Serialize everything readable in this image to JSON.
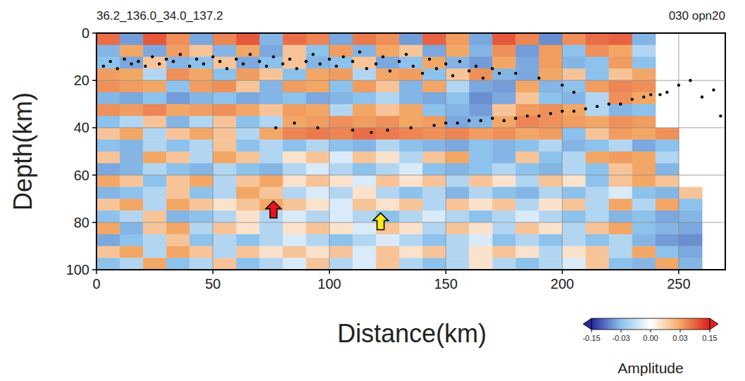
{
  "chart_data": {
    "type": "heatmap",
    "title": "36.2_136.0_34.0_137.2",
    "subtitle": "030 opn20",
    "x_label": "Distance(km)",
    "y_label": "Depth(km)",
    "xlim": [
      0,
      270
    ],
    "ylim": [
      0,
      100
    ],
    "xticks": [
      0,
      50,
      100,
      150,
      200,
      250
    ],
    "yticks": [
      0,
      20,
      40,
      60,
      80,
      100
    ],
    "grid": true,
    "cells": {
      "x_bins": [
        0,
        10,
        20,
        30,
        40,
        50,
        60,
        70,
        80,
        90,
        100,
        110,
        120,
        130,
        140,
        150,
        160,
        170,
        180,
        190,
        200,
        210,
        220,
        230,
        240,
        250,
        260,
        270
      ],
      "y_bins": [
        0,
        5,
        10,
        15,
        20,
        25,
        30,
        35,
        40,
        45,
        50,
        55,
        60,
        65,
        70,
        75,
        80,
        85,
        90,
        95,
        100
      ],
      "values": [
        [
          0.08,
          -0.06,
          0.1,
          0.05,
          -0.05,
          0.06,
          0.1,
          -0.04,
          0.08,
          0.06,
          -0.05,
          0.07,
          0.05,
          -0.06,
          0.09,
          0.04,
          -0.05,
          0.1,
          0.06,
          -0.07,
          0.05,
          0.08,
          0.09,
          -0.04,
          null,
          null,
          null
        ],
        [
          -0.04,
          0.03,
          -0.05,
          0.04,
          0.02,
          -0.04,
          0.03,
          -0.05,
          0.02,
          -0.03,
          0.04,
          -0.04,
          0.03,
          0.02,
          -0.05,
          0.03,
          -0.04,
          0.05,
          -0.06,
          0.04,
          -0.03,
          0.05,
          0.03,
          -0.02,
          null,
          null,
          null
        ],
        [
          -0.03,
          -0.05,
          0.02,
          -0.04,
          -0.03,
          0.02,
          -0.05,
          -0.03,
          0.02,
          -0.04,
          -0.03,
          0.02,
          -0.05,
          -0.03,
          0.03,
          -0.04,
          -0.06,
          0.03,
          -0.05,
          0.04,
          -0.04,
          -0.03,
          0.04,
          -0.03,
          null,
          null,
          null
        ],
        [
          0.04,
          0.03,
          -0.02,
          0.05,
          0.03,
          -0.03,
          0.04,
          0.02,
          -0.03,
          0.03,
          0.04,
          -0.02,
          0.03,
          0.04,
          -0.03,
          0.02,
          0.05,
          -0.04,
          -0.05,
          0.03,
          0.02,
          -0.03,
          0.02,
          0.03,
          null,
          null,
          null
        ],
        [
          0.05,
          0.04,
          0.03,
          -0.03,
          0.04,
          0.05,
          0.02,
          -0.04,
          0.04,
          0.03,
          -0.03,
          0.04,
          0.02,
          -0.04,
          0.03,
          -0.02,
          -0.05,
          -0.06,
          0.03,
          -0.04,
          -0.03,
          0.04,
          0.06,
          0.05,
          null,
          null,
          null
        ],
        [
          -0.04,
          -0.05,
          -0.03,
          -0.06,
          -0.04,
          -0.03,
          -0.05,
          -0.04,
          -0.03,
          -0.05,
          -0.04,
          -0.03,
          -0.02,
          -0.04,
          -0.05,
          -0.03,
          -0.07,
          -0.05,
          0.02,
          -0.03,
          -0.04,
          -0.02,
          0.05,
          0.03,
          null,
          null,
          null
        ],
        [
          0.05,
          0.04,
          0.06,
          0.03,
          0.04,
          0.05,
          0.03,
          0.02,
          0.04,
          0.03,
          -0.02,
          0.03,
          0.02,
          0.03,
          -0.03,
          -0.04,
          -0.06,
          0.02,
          0.04,
          0.05,
          0.03,
          -0.02,
          -0.04,
          -0.03,
          null,
          null,
          null
        ],
        [
          -0.03,
          -0.02,
          0.02,
          -0.04,
          -0.02,
          0.02,
          -0.03,
          -0.02,
          0.03,
          0.04,
          0.05,
          0.04,
          0.05,
          0.03,
          0.04,
          -0.05,
          -0.04,
          0.03,
          0.06,
          0.05,
          0.04,
          0.03,
          0.05,
          0.04,
          null,
          null,
          null
        ],
        [
          0.02,
          0.03,
          -0.02,
          0.02,
          0.03,
          0.02,
          -0.02,
          0.03,
          0.06,
          0.07,
          0.06,
          0.08,
          0.07,
          0.06,
          0.05,
          0.06,
          0.04,
          0.05,
          0.03,
          0.04,
          -0.03,
          0.02,
          0.04,
          0.03,
          0.05,
          null,
          null
        ],
        [
          -0.03,
          -0.04,
          -0.02,
          -0.03,
          -0.02,
          0.02,
          -0.03,
          -0.02,
          -0.03,
          -0.02,
          -0.03,
          -0.04,
          -0.02,
          -0.03,
          -0.04,
          -0.05,
          -0.03,
          -0.04,
          -0.03,
          -0.02,
          -0.04,
          -0.03,
          -0.02,
          -0.05,
          -0.03,
          null,
          null
        ],
        [
          0.02,
          -0.04,
          0.03,
          0.02,
          -0.02,
          0.03,
          0.02,
          -0.02,
          0.01,
          0.02,
          -0.01,
          0.02,
          0.01,
          -0.02,
          0.02,
          0.03,
          -0.03,
          -0.04,
          0.02,
          -0.03,
          -0.02,
          0.03,
          0.04,
          0.03,
          -0.02,
          null,
          null
        ],
        [
          -0.05,
          -0.04,
          -0.02,
          -0.03,
          -0.04,
          -0.02,
          -0.03,
          -0.04,
          -0.02,
          -0.01,
          -0.02,
          -0.03,
          -0.02,
          -0.01,
          -0.03,
          -0.04,
          -0.03,
          -0.02,
          -0.03,
          -0.04,
          -0.02,
          -0.03,
          0.02,
          0.03,
          -0.04,
          null,
          null
        ],
        [
          0.03,
          0.02,
          -0.03,
          0.02,
          0.03,
          -0.02,
          0.02,
          0.03,
          0.01,
          0.02,
          0.01,
          -0.01,
          0.02,
          0.01,
          0.02,
          -0.02,
          0.02,
          0.01,
          -0.02,
          0.02,
          0.01,
          -0.03,
          0.02,
          0.03,
          0.02,
          null,
          null
        ],
        [
          -0.04,
          -0.03,
          -0.02,
          0.02,
          -0.03,
          -0.02,
          0.03,
          0.02,
          -0.02,
          -0.01,
          -0.02,
          0.01,
          -0.02,
          -0.03,
          -0.02,
          -0.04,
          -0.02,
          -0.03,
          -0.04,
          -0.02,
          -0.03,
          -0.02,
          -0.01,
          -0.03,
          -0.04,
          0.02,
          null
        ],
        [
          0.02,
          0.03,
          -0.02,
          0.03,
          0.02,
          0.01,
          0.02,
          0.03,
          0.02,
          0.01,
          -0.01,
          0.02,
          0.01,
          0.02,
          -0.02,
          0.02,
          0.01,
          0.02,
          -0.02,
          0.01,
          0.02,
          -0.02,
          0.03,
          -0.02,
          0.03,
          -0.03,
          null
        ],
        [
          -0.03,
          -0.02,
          0.02,
          -0.04,
          -0.03,
          -0.02,
          0.01,
          -0.02,
          -0.01,
          -0.02,
          -0.01,
          -0.02,
          -0.03,
          -0.02,
          -0.01,
          -0.02,
          -0.03,
          -0.02,
          -0.01,
          -0.02,
          -0.03,
          -0.02,
          -0.04,
          -0.03,
          -0.05,
          -0.04,
          null
        ],
        [
          0.03,
          -0.04,
          0.02,
          0.03,
          -0.02,
          0.02,
          0.01,
          -0.02,
          0.01,
          0.02,
          0.01,
          -0.01,
          0.02,
          0.01,
          -0.02,
          0.02,
          0.01,
          -0.02,
          0.02,
          0.01,
          -0.02,
          0.02,
          0.03,
          -0.03,
          -0.04,
          -0.05,
          null
        ],
        [
          -0.05,
          -0.03,
          -0.02,
          0.02,
          -0.03,
          -0.02,
          -0.03,
          -0.02,
          -0.01,
          -0.02,
          -0.03,
          -0.02,
          -0.01,
          -0.02,
          -0.03,
          -0.02,
          -0.01,
          -0.03,
          -0.02,
          -0.03,
          -0.02,
          -0.03,
          -0.02,
          -0.04,
          -0.06,
          -0.07,
          null
        ],
        [
          0.02,
          0.03,
          -0.02,
          0.03,
          0.02,
          -0.02,
          0.02,
          0.01,
          0.02,
          0.01,
          0.02,
          -0.01,
          0.02,
          0.01,
          0.02,
          -0.02,
          0.01,
          0.02,
          0.01,
          -0.02,
          0.01,
          0.02,
          -0.02,
          0.03,
          -0.03,
          -0.05,
          null
        ],
        [
          -0.03,
          -0.02,
          0.03,
          -0.03,
          -0.02,
          0.02,
          -0.03,
          -0.02,
          -0.01,
          0.02,
          -0.02,
          -0.01,
          0.02,
          -0.02,
          -0.03,
          -0.02,
          0.01,
          -0.02,
          -0.03,
          -0.02,
          -0.01,
          0.02,
          -0.03,
          -0.04,
          0.03,
          -0.04,
          null
        ]
      ]
    },
    "points": {
      "color": "#000000",
      "marker": "circle",
      "x": [
        3,
        6,
        9,
        12,
        15,
        18,
        21,
        24,
        27,
        30,
        33,
        36,
        40,
        43,
        46,
        50,
        53,
        56,
        60,
        63,
        66,
        70,
        73,
        76,
        80,
        83,
        86,
        90,
        93,
        96,
        100,
        103,
        106,
        110,
        113,
        116,
        120,
        123,
        126,
        130,
        133,
        136,
        140,
        143,
        146,
        150,
        153,
        156,
        160,
        163,
        166,
        170,
        173,
        180,
        190,
        200,
        205,
        77,
        85,
        95,
        110,
        118,
        125,
        135,
        145,
        150,
        155,
        160,
        165,
        170,
        175,
        180,
        185,
        190,
        195,
        200,
        205,
        210,
        215,
        220,
        225,
        230,
        235,
        238,
        242,
        245,
        250,
        255,
        260,
        265,
        268
      ],
      "depth": [
        14,
        12,
        15,
        11,
        13,
        12,
        14,
        10,
        13,
        11,
        12,
        9,
        14,
        11,
        13,
        10,
        12,
        15,
        11,
        13,
        9,
        12,
        14,
        10,
        13,
        11,
        15,
        12,
        9,
        13,
        11,
        14,
        10,
        12,
        8,
        15,
        13,
        10,
        16,
        12,
        9,
        14,
        17,
        11,
        15,
        13,
        18,
        12,
        16,
        14,
        19,
        15,
        17,
        17,
        19,
        22,
        25,
        40,
        38,
        40,
        41,
        42,
        41,
        40,
        39,
        38,
        38,
        37,
        37,
        36,
        37,
        36,
        35,
        35,
        34,
        33,
        33,
        32,
        31,
        30,
        30,
        28,
        27,
        26,
        26,
        25,
        22,
        20,
        27,
        24,
        35
      ]
    },
    "arrows": [
      {
        "x": 76,
        "depth": 71,
        "color": "#e8131b"
      },
      {
        "x": 122,
        "depth": 76,
        "color": "#f7ea1c"
      }
    ],
    "colorbar": {
      "range": [
        -0.15,
        0.15
      ],
      "ticks": [
        -0.15,
        -0.03,
        {
          "value": 0,
          "label": "0.00"
        },
        0.03,
        0.15
      ],
      "colors": [
        "#27289a",
        "#8cc2ec",
        "#ffffff",
        "#f3a766",
        "#dc1f1c"
      ],
      "label": "Amplitude"
    }
  }
}
